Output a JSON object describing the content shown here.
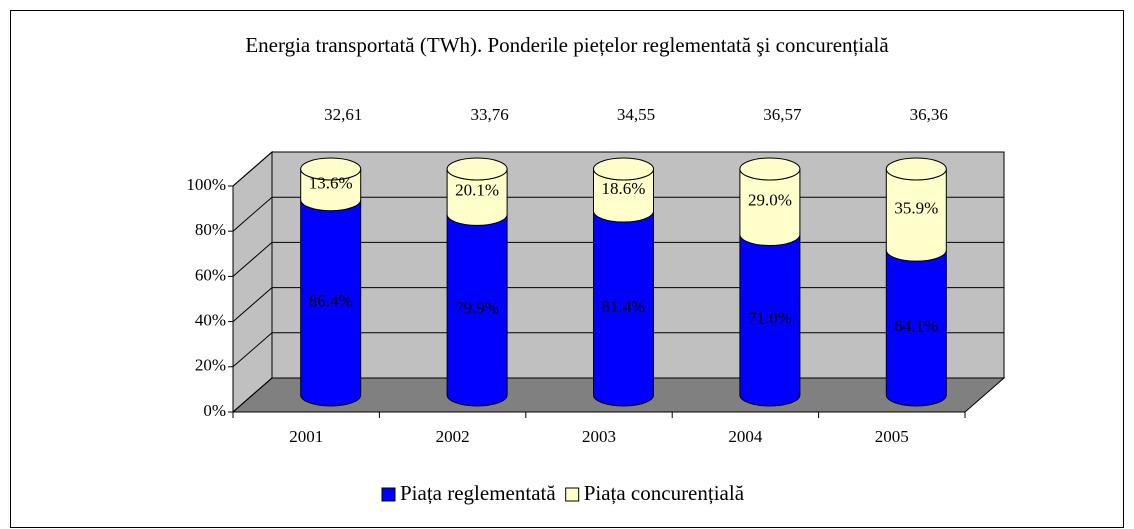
{
  "chart_data": {
    "type": "bar3d_stacked_cylinder",
    "title": "Energia transportată (TWh). Ponderile piețelor reglementată şi concurențială",
    "categories": [
      "2001",
      "2002",
      "2003",
      "2004",
      "2005"
    ],
    "series": [
      {
        "name": "Piața reglementată",
        "color": "#0000ff",
        "values": [
          86.4,
          79.9,
          81.4,
          71.0,
          64.1
        ],
        "value_labels": [
          "86.4%",
          "79.9%",
          "81.4%",
          "71.0%",
          "64.1%"
        ]
      },
      {
        "name": "Piața concurențială",
        "color": "#ffffcc",
        "values": [
          13.6,
          20.1,
          18.6,
          29.0,
          35.9
        ],
        "value_labels": [
          "13.6%",
          "20.1%",
          "18.6%",
          "29.0%",
          "35.9%"
        ]
      }
    ],
    "totals": {
      "values": [
        32.61,
        33.76,
        34.55,
        36.57,
        36.36
      ],
      "value_labels": [
        "32,61",
        "33,76",
        "34,55",
        "36,57",
        "36,36"
      ]
    },
    "ylim": [
      0,
      100
    ],
    "yticks": [
      {
        "value": 0,
        "label": "0%"
      },
      {
        "value": 20,
        "label": "20%"
      },
      {
        "value": 40,
        "label": "40%"
      },
      {
        "value": 60,
        "label": "60%"
      },
      {
        "value": 80,
        "label": "80%"
      },
      {
        "value": 100,
        "label": "100%"
      }
    ],
    "grid": true,
    "legend": "bottom"
  }
}
